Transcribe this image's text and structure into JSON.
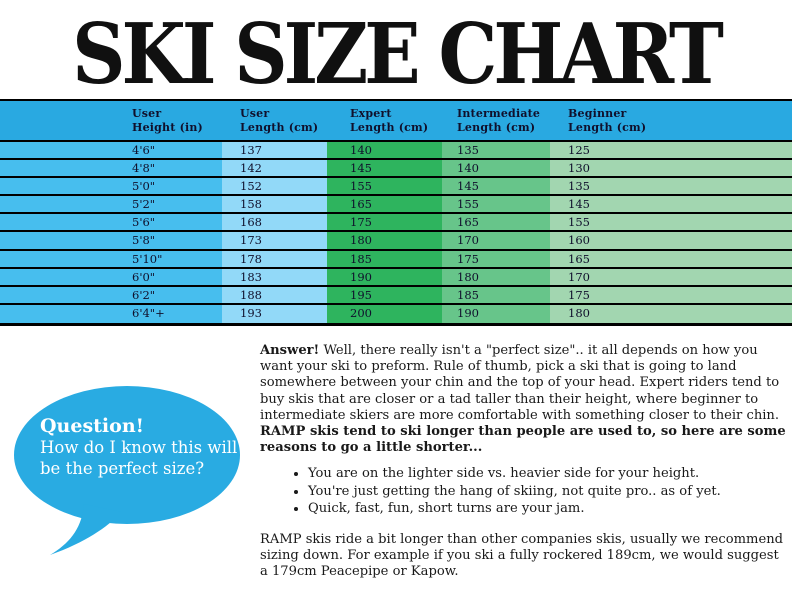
{
  "title": "SKI SIZE CHART",
  "colors": {
    "header_blue": "#29a9e1",
    "height_col_blue": "#47beee",
    "user_length_blue": "#92d9f8",
    "expert_green": "#2eb45e",
    "intermediate_green": "#67c58a",
    "beginner_green": "#a2d6b0",
    "bubble_blue": "#29abe2",
    "table_text": "#10102c"
  },
  "table": {
    "columns": [
      {
        "line1": "User",
        "line2": "Height (in)"
      },
      {
        "line1": "User",
        "line2": "Length (cm)"
      },
      {
        "line1": "Expert",
        "line2": "Length (cm)"
      },
      {
        "line1": "Intermediate",
        "line2": "Length (cm)"
      },
      {
        "line1": "Beginner",
        "line2": "Length (cm)"
      }
    ],
    "rows": [
      [
        "4'6\"",
        "137",
        "140",
        "135",
        "125"
      ],
      [
        "4'8\"",
        "142",
        "145",
        "140",
        "130"
      ],
      [
        "5'0\"",
        "152",
        "155",
        "145",
        "135"
      ],
      [
        "5'2\"",
        "158",
        "165",
        "155",
        "145"
      ],
      [
        "5'6\"",
        "168",
        "175",
        "165",
        "155"
      ],
      [
        "5'8\"",
        "173",
        "180",
        "170",
        "160"
      ],
      [
        "5'10\"",
        "178",
        "185",
        "175",
        "165"
      ],
      [
        "6'0\"",
        "183",
        "190",
        "180",
        "170"
      ],
      [
        "6'2\"",
        "188",
        "195",
        "185",
        "175"
      ],
      [
        "6'4\"+",
        "193",
        "200",
        "190",
        "180"
      ]
    ]
  },
  "question_bubble": {
    "label": "Question!",
    "line1": "How do I know this will",
    "line2": "be the perfect size?"
  },
  "answer": {
    "label": "Answer!",
    "intro": "Well, there really isn't a \"perfect size\".. it all depends on how you want your ski to preform. Rule of thumb, pick a ski that is going to land somewhere between your chin and the top of your head. Expert riders tend to buy skis that are closer or a tad taller than their height, where beginner to intermediate skiers are more comfortable with something closer to their chin.",
    "bold_tail": "RAMP skis tend to ski longer than people are used to, so here are some reasons to go a little shorter...",
    "bullets": [
      "You are on the lighter side vs. heavier side for your height.",
      "You're just getting the hang of skiing, not quite pro.. as of yet.",
      "Quick, fast, fun, short turns are your jam."
    ],
    "closing": "RAMP skis ride a bit longer than other companies skis, usually we recommend sizing down. For example if you ski a fully rockered 189cm, we would suggest a 179cm Peacepipe or Kapow."
  }
}
